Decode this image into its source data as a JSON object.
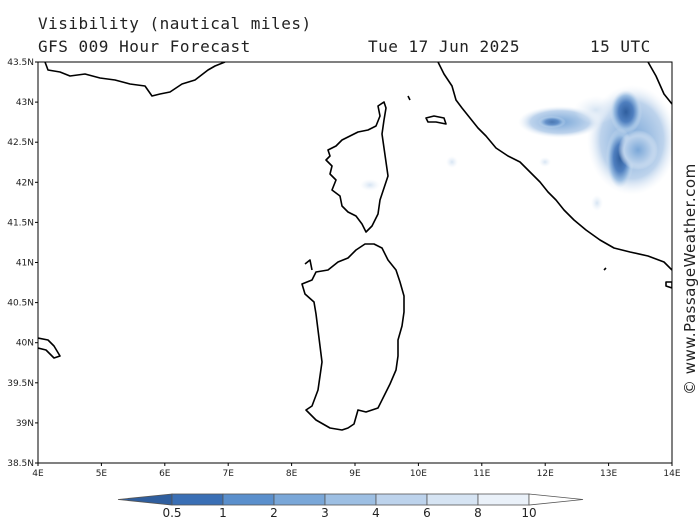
{
  "header": {
    "title": "Visibility (nautical miles)",
    "model_line": "GFS 009 Hour Forecast",
    "date": "Tue 17 Jun 2025",
    "time": "15 UTC"
  },
  "map": {
    "lat_ticks": [
      "43.5N",
      "43N",
      "42.5N",
      "42N",
      "41.5N",
      "41N",
      "40.5N",
      "40N",
      "39.5N",
      "39N",
      "38.5N"
    ],
    "lon_ticks": [
      "4E",
      "5E",
      "6E",
      "7E",
      "8E",
      "9E",
      "10E",
      "11E",
      "12E",
      "13E",
      "14E"
    ],
    "land_labels": []
  },
  "legend": {
    "values": [
      "0.5",
      "1",
      "2",
      "3",
      "4",
      "6",
      "8",
      "10"
    ],
    "colors": [
      "#3a6fb5",
      "#5a8fcc",
      "#7aa7d8",
      "#9dbfe3",
      "#bdd3ec",
      "#d6e4f3",
      "#eaf1f9",
      "#ffffff"
    ]
  },
  "credit": "© www.PassageWeather.com"
}
